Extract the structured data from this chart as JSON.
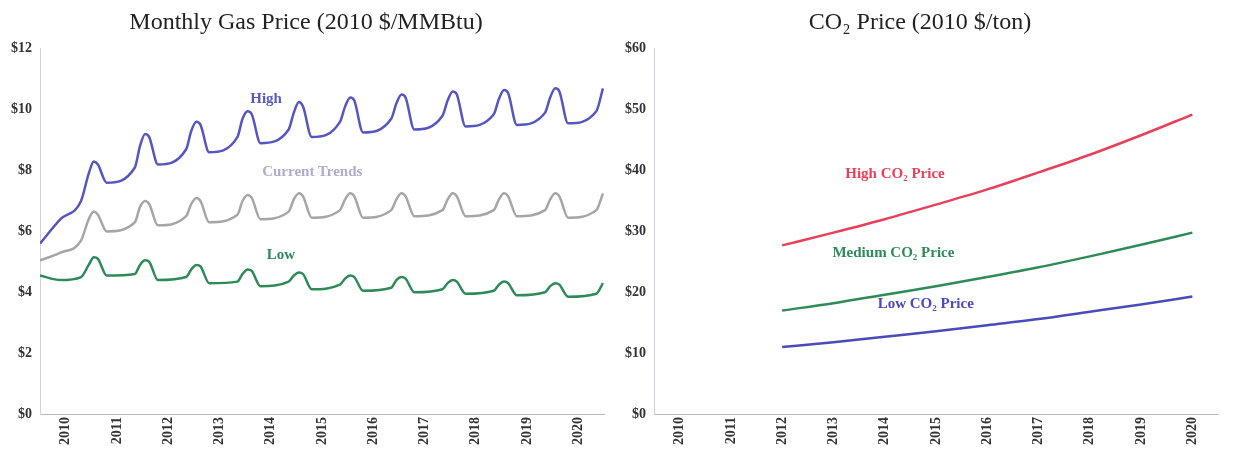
{
  "chart_data": [
    {
      "type": "line",
      "title": "Monthly Gas Price (2010 $/MMBtu)",
      "x": [
        2010.0,
        2010.4,
        2010.8,
        2010.95,
        2011.05,
        2011.13,
        2011.3,
        2011.85,
        2011.95,
        2012.05,
        2012.13,
        2012.3,
        2012.85,
        2012.95,
        2013.05,
        2013.13,
        2013.3,
        2013.85,
        2013.95,
        2014.05,
        2014.13,
        2014.3,
        2014.85,
        2014.95,
        2015.05,
        2015.13,
        2015.3,
        2015.85,
        2015.95,
        2016.05,
        2016.13,
        2016.3,
        2016.85,
        2016.95,
        2017.05,
        2017.13,
        2017.3,
        2017.85,
        2017.95,
        2018.05,
        2018.13,
        2018.3,
        2018.85,
        2018.95,
        2019.05,
        2019.13,
        2019.3,
        2019.85,
        2019.95,
        2020.05,
        2020.13,
        2020.3,
        2020.85,
        2020.98
      ],
      "series": [
        {
          "name": "High",
          "color": "#5656c0",
          "values": [
            5.6,
            6.4,
            7.0,
            7.9,
            8.3,
            8.2,
            7.6,
            8.1,
            8.8,
            9.2,
            9.1,
            8.2,
            8.7,
            9.3,
            9.6,
            9.5,
            8.6,
            9.1,
            9.7,
            9.95,
            9.85,
            8.9,
            9.35,
            9.9,
            10.25,
            10.1,
            9.1,
            9.6,
            10.1,
            10.4,
            10.3,
            9.25,
            9.7,
            10.2,
            10.5,
            10.4,
            9.35,
            9.8,
            10.3,
            10.6,
            10.5,
            9.45,
            9.85,
            10.35,
            10.65,
            10.55,
            9.5,
            9.9,
            10.4,
            10.7,
            10.6,
            9.55,
            9.95,
            10.7
          ]
        },
        {
          "name": "Current Trends",
          "color": "#a6a6a6",
          "values": [
            5.05,
            5.3,
            5.7,
            6.4,
            6.65,
            6.55,
            6.0,
            6.3,
            6.8,
            7.0,
            6.9,
            6.2,
            6.5,
            6.9,
            7.1,
            7.0,
            6.3,
            6.55,
            7.0,
            7.2,
            7.1,
            6.4,
            6.65,
            7.05,
            7.25,
            7.15,
            6.45,
            6.7,
            7.05,
            7.25,
            7.15,
            6.45,
            6.7,
            7.05,
            7.25,
            7.15,
            6.5,
            6.7,
            7.05,
            7.25,
            7.15,
            6.5,
            6.7,
            7.05,
            7.25,
            7.15,
            6.5,
            6.7,
            7.05,
            7.25,
            7.15,
            6.45,
            6.7,
            7.25
          ]
        },
        {
          "name": "Low",
          "color": "#2e8b57",
          "values": [
            4.55,
            4.4,
            4.5,
            4.9,
            5.15,
            5.1,
            4.55,
            4.6,
            4.9,
            5.05,
            5.0,
            4.4,
            4.5,
            4.75,
            4.9,
            4.85,
            4.3,
            4.35,
            4.6,
            4.75,
            4.7,
            4.2,
            4.35,
            4.55,
            4.65,
            4.6,
            4.1,
            4.25,
            4.45,
            4.55,
            4.5,
            4.05,
            4.15,
            4.4,
            4.5,
            4.45,
            4.0,
            4.1,
            4.3,
            4.4,
            4.35,
            3.95,
            4.05,
            4.25,
            4.35,
            4.3,
            3.9,
            4.0,
            4.2,
            4.3,
            4.25,
            3.85,
            3.95,
            4.3
          ]
        }
      ],
      "xlim": [
        2010,
        2021
      ],
      "xticks": [
        {
          "value": 2010.5,
          "label": "2010"
        },
        {
          "value": 2011.5,
          "label": "2011"
        },
        {
          "value": 2012.5,
          "label": "2012"
        },
        {
          "value": 2013.5,
          "label": "2013"
        },
        {
          "value": 2014.5,
          "label": "2014"
        },
        {
          "value": 2015.5,
          "label": "2015"
        },
        {
          "value": 2016.5,
          "label": "2016"
        },
        {
          "value": 2017.5,
          "label": "2017"
        },
        {
          "value": 2018.5,
          "label": "2018"
        },
        {
          "value": 2019.5,
          "label": "2019"
        },
        {
          "value": 2020.5,
          "label": "2020"
        }
      ],
      "ylim": [
        0,
        12
      ],
      "yticks": [
        {
          "value": 0,
          "label": "$0"
        },
        {
          "value": 2,
          "label": "$2"
        },
        {
          "value": 4,
          "label": "$4"
        },
        {
          "value": 6,
          "label": "$6"
        },
        {
          "value": 8,
          "label": "$8"
        },
        {
          "value": 10,
          "label": "$10"
        },
        {
          "value": 12,
          "label": "$12"
        }
      ]
    },
    {
      "type": "line",
      "title": "CO₂ Price (2010 $/ton)",
      "categories": [
        "2010",
        "2011",
        "2012",
        "2013",
        "2014",
        "2015",
        "2016",
        "2017",
        "2018",
        "2019",
        "2020"
      ],
      "series": [
        {
          "name": "High CO₂ Price",
          "color": "#e8405a",
          "values": [
            null,
            null,
            27.7,
            29.8,
            32.0,
            34.4,
            36.9,
            39.7,
            42.6,
            45.8,
            49.2
          ]
        },
        {
          "name": "Medium CO₂ Price",
          "color": "#2e8b57",
          "values": [
            null,
            null,
            17.0,
            18.2,
            19.6,
            21.0,
            22.5,
            24.1,
            25.9,
            27.8,
            29.8
          ]
        },
        {
          "name": "Low CO₂ Price",
          "color": "#4a4ab8",
          "values": [
            null,
            null,
            11.0,
            11.8,
            12.7,
            13.6,
            14.6,
            15.6,
            16.8,
            18.0,
            19.3
          ]
        }
      ],
      "ylim": [
        0,
        60
      ],
      "yticks": [
        {
          "value": 0,
          "label": "$0"
        },
        {
          "value": 10,
          "label": "$10"
        },
        {
          "value": 20,
          "label": "$20"
        },
        {
          "value": 30,
          "label": "$30"
        },
        {
          "value": 40,
          "label": "$40"
        },
        {
          "value": 50,
          "label": "$50"
        },
        {
          "value": 60,
          "label": "$60"
        }
      ]
    }
  ]
}
